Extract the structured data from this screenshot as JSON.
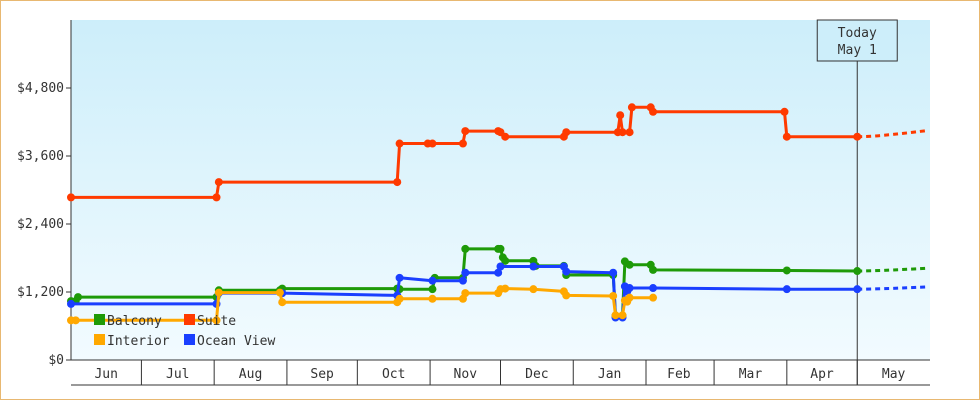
{
  "chart_data": {
    "type": "line",
    "step": true,
    "title": "",
    "xlabel": "",
    "ylabel": "",
    "ylim": [
      0,
      6000
    ],
    "yticks": [
      {
        "value": 0,
        "label": "$0"
      },
      {
        "value": 1200,
        "label": "$1,200"
      },
      {
        "value": 2400,
        "label": "$2,400"
      },
      {
        "value": 3600,
        "label": "$3,600"
      },
      {
        "value": 4800,
        "label": "$4,800"
      }
    ],
    "months": [
      {
        "label": "Jun",
        "start": "06-01",
        "end": "06-30"
      },
      {
        "label": "Jul",
        "start": "07-01",
        "end": "07-31"
      },
      {
        "label": "Aug",
        "start": "08-01",
        "end": "08-31"
      },
      {
        "label": "Sep",
        "start": "09-01",
        "end": "09-30"
      },
      {
        "label": "Oct",
        "start": "10-01",
        "end": "10-31"
      },
      {
        "label": "Nov",
        "start": "11-01",
        "end": "11-30"
      },
      {
        "label": "Dec",
        "start": "12-01",
        "end": "12-31"
      },
      {
        "label": "Jan",
        "start": "01-01",
        "end": "01-31"
      },
      {
        "label": "Feb",
        "start": "02-01",
        "end": "02-28"
      },
      {
        "label": "Mar",
        "start": "03-01",
        "end": "03-31"
      },
      {
        "label": "Apr",
        "start": "04-01",
        "end": "04-30"
      },
      {
        "label": "May",
        "start": "05-01",
        "end": "05-31"
      }
    ],
    "today": {
      "lines": [
        "Today",
        "May 1"
      ],
      "date": "05-01"
    },
    "legend_position": "bottom-left",
    "grid": false,
    "series": [
      {
        "name": "Suite",
        "color": "#ff3a00",
        "points": [
          [
            "06-01",
            2870
          ],
          [
            "08-02",
            2870
          ],
          [
            "08-03",
            3140
          ],
          [
            "10-18",
            3140
          ],
          [
            "10-19",
            3820
          ],
          [
            "10-31",
            3820
          ],
          [
            "11-02",
            3820
          ],
          [
            "11-15",
            3820
          ],
          [
            "11-16",
            4040
          ],
          [
            "11-30",
            4040
          ],
          [
            "12-01",
            4020
          ],
          [
            "12-03",
            3940
          ],
          [
            "12-28",
            3940
          ],
          [
            "12-29",
            4020
          ],
          [
            "01-20",
            4020
          ],
          [
            "01-21",
            4320
          ],
          [
            "01-22",
            4020
          ],
          [
            "01-25",
            4020
          ],
          [
            "01-26",
            4460
          ],
          [
            "02-03",
            4460
          ],
          [
            "02-04",
            4380
          ],
          [
            "03-31",
            4380
          ],
          [
            "04-01",
            3940
          ],
          [
            "05-01",
            3940
          ]
        ],
        "projected": [
          [
            "05-01",
            3940
          ],
          [
            "05-31",
            4050
          ]
        ]
      },
      {
        "name": "Balcony",
        "color": "#1e9a08",
        "points": [
          [
            "06-01",
            1040
          ],
          [
            "06-03",
            1040
          ],
          [
            "06-04",
            1110
          ],
          [
            "08-02",
            1110
          ],
          [
            "08-03",
            1230
          ],
          [
            "08-29",
            1230
          ],
          [
            "08-30",
            1260
          ],
          [
            "10-18",
            1260
          ],
          [
            "10-19",
            1250
          ],
          [
            "11-02",
            1250
          ],
          [
            "11-03",
            1450
          ],
          [
            "11-15",
            1450
          ],
          [
            "11-16",
            1960
          ],
          [
            "11-30",
            1960
          ],
          [
            "12-01",
            1960
          ],
          [
            "12-02",
            1810
          ],
          [
            "12-03",
            1750
          ],
          [
            "12-15",
            1750
          ],
          [
            "12-16",
            1660
          ],
          [
            "12-28",
            1660
          ],
          [
            "12-29",
            1500
          ],
          [
            "01-18",
            1500
          ],
          [
            "01-19",
            780
          ],
          [
            "01-22",
            780
          ],
          [
            "01-23",
            1740
          ],
          [
            "01-25",
            1680
          ],
          [
            "02-03",
            1680
          ],
          [
            "02-04",
            1590
          ],
          [
            "04-01",
            1580
          ],
          [
            "05-01",
            1570
          ]
        ],
        "projected": [
          [
            "05-01",
            1570
          ],
          [
            "05-31",
            1620
          ]
        ]
      },
      {
        "name": "Ocean View",
        "color": "#1a3fff",
        "points": [
          [
            "06-01",
            990
          ],
          [
            "08-02",
            990
          ],
          [
            "08-03",
            1180
          ],
          [
            "08-30",
            1180
          ],
          [
            "10-18",
            1140
          ],
          [
            "10-19",
            1450
          ],
          [
            "11-02",
            1400
          ],
          [
            "11-15",
            1400
          ],
          [
            "11-16",
            1540
          ],
          [
            "11-30",
            1540
          ],
          [
            "12-01",
            1650
          ],
          [
            "12-15",
            1650
          ],
          [
            "12-28",
            1650
          ],
          [
            "12-29",
            1560
          ],
          [
            "01-18",
            1540
          ],
          [
            "01-19",
            750
          ],
          [
            "01-22",
            750
          ],
          [
            "01-23",
            1300
          ],
          [
            "01-24",
            1210
          ],
          [
            "01-25",
            1270
          ],
          [
            "02-04",
            1270
          ],
          [
            "04-01",
            1250
          ],
          [
            "05-01",
            1250
          ]
        ],
        "projected": [
          [
            "05-01",
            1250
          ],
          [
            "05-31",
            1290
          ]
        ]
      },
      {
        "name": "Interior",
        "color": "#ffa800",
        "points": [
          [
            "06-01",
            700
          ],
          [
            "06-03",
            700
          ],
          [
            "08-02",
            700
          ],
          [
            "08-03",
            1190
          ],
          [
            "08-29",
            1190
          ],
          [
            "08-30",
            1020
          ],
          [
            "10-18",
            1020
          ],
          [
            "10-19",
            1080
          ],
          [
            "11-02",
            1080
          ],
          [
            "11-15",
            1080
          ],
          [
            "11-16",
            1180
          ],
          [
            "11-30",
            1180
          ],
          [
            "12-01",
            1250
          ],
          [
            "12-03",
            1260
          ],
          [
            "12-15",
            1250
          ],
          [
            "12-28",
            1210
          ],
          [
            "12-29",
            1140
          ],
          [
            "01-18",
            1130
          ],
          [
            "01-19",
            790
          ],
          [
            "01-22",
            790
          ],
          [
            "01-23",
            1050
          ],
          [
            "01-24",
            1030
          ],
          [
            "01-25",
            1100
          ],
          [
            "02-04",
            1100
          ]
        ]
      }
    ]
  }
}
